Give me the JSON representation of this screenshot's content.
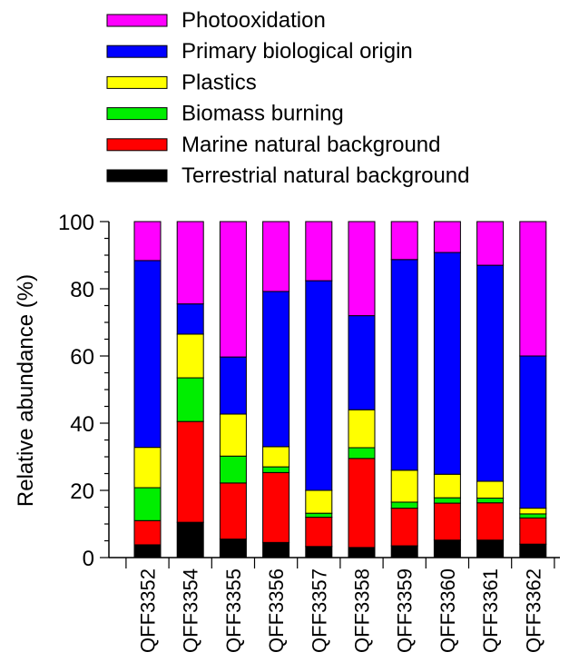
{
  "chart_data": {
    "type": "bar",
    "stacked": true,
    "title": "",
    "xlabel": "",
    "ylabel": "Relative abundance (%)",
    "ylim": [
      0,
      100
    ],
    "yticks": [
      0,
      20,
      40,
      60,
      80,
      100
    ],
    "grid": false,
    "legend_position": "top",
    "categories": [
      "QFF3352",
      "QFF3354",
      "QFF3355",
      "QFF3356",
      "QFF3357",
      "QFF3358",
      "QFF3359",
      "QFF3360",
      "QFF3361",
      "QFF3362"
    ],
    "series": [
      {
        "name": "Terrestrial natural background",
        "color": "#000000",
        "values": [
          3.8,
          10.5,
          5.5,
          4.5,
          3.3,
          3.0,
          3.5,
          5.2,
          5.2,
          4.0
        ]
      },
      {
        "name": "Marine natural background",
        "color": "#ff0000",
        "values": [
          7.2,
          30.0,
          16.7,
          20.8,
          8.7,
          26.5,
          11.2,
          11.0,
          11.1,
          7.8
        ]
      },
      {
        "name": "Biomass burning",
        "color": "#00ee00",
        "values": [
          9.8,
          13.0,
          8.0,
          1.7,
          1.2,
          3.2,
          1.8,
          1.6,
          1.4,
          1.2
        ]
      },
      {
        "name": "Plastics",
        "color": "#ffff00",
        "values": [
          12.0,
          13.0,
          12.5,
          6.0,
          6.8,
          11.3,
          9.5,
          7.0,
          5.0,
          1.7
        ]
      },
      {
        "name": "Primary biological origin",
        "color": "#0000ff",
        "values": [
          55.6,
          9.0,
          17.0,
          46.2,
          62.4,
          28.0,
          62.7,
          66.0,
          64.3,
          45.3
        ]
      },
      {
        "name": "Photooxidation",
        "color": "#ff00ff",
        "values": [
          11.6,
          24.5,
          40.3,
          20.8,
          17.6,
          28.0,
          11.3,
          9.2,
          13.0,
          40.0
        ]
      }
    ],
    "legend_order": [
      "Photooxidation",
      "Primary biological origin",
      "Plastics",
      "Biomass burning",
      "Marine natural background",
      "Terrestrial natural background"
    ]
  }
}
